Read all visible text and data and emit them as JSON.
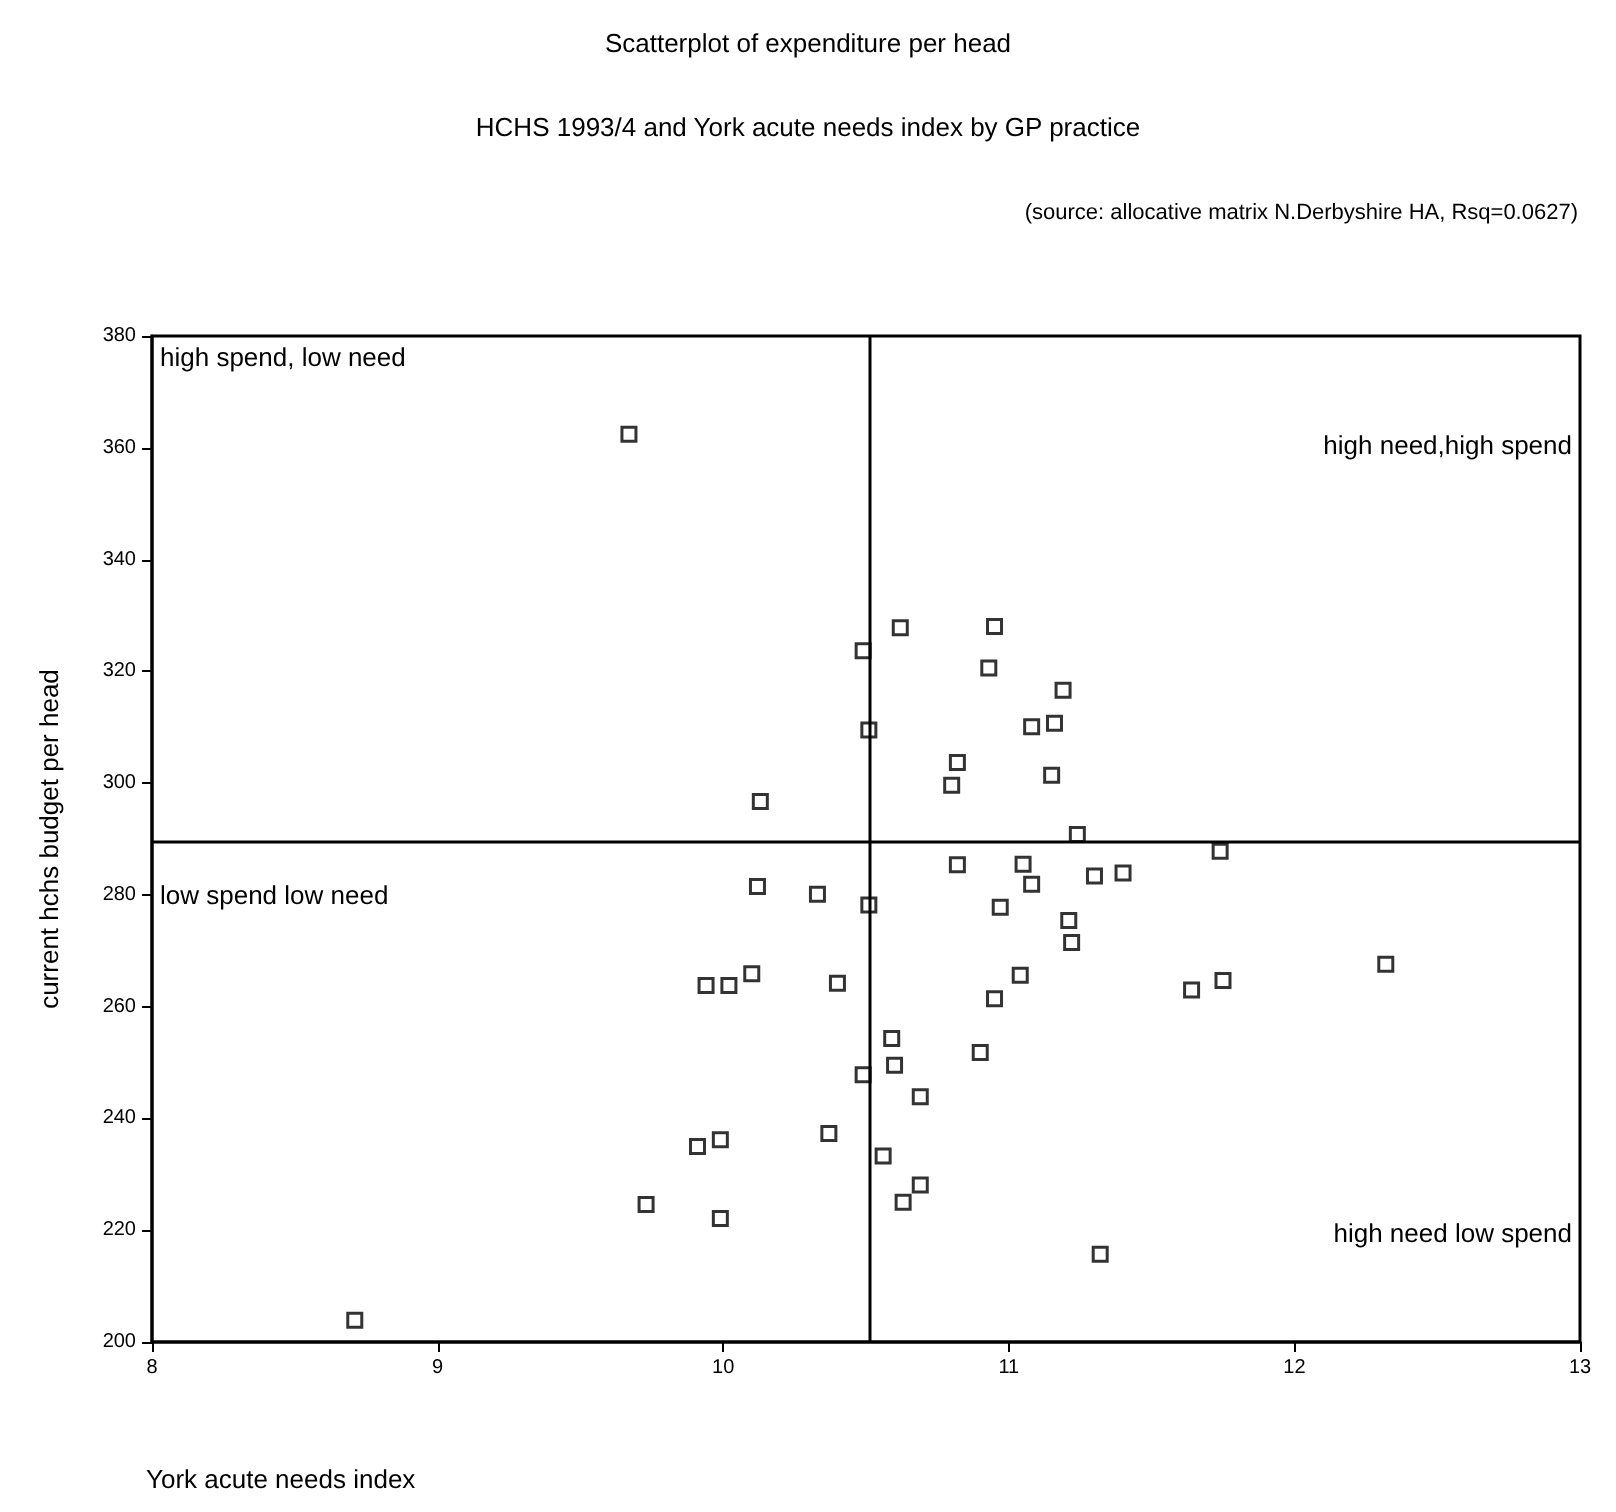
{
  "chart_data": {
    "type": "scatter",
    "title": "Scatterplot of expenditure per head",
    "subtitle": "HCHS 1993/4 and York acute needs index by GP practice",
    "xlabel": "York acute needs index",
    "ylabel": "current hchs budget per head",
    "annotations": [
      "(source: allocative matrix N.Derbyshire HA, Rsq=0.0627)",
      "high spend, low need",
      "high need,high spend",
      "low spend low need",
      "high need low spend"
    ],
    "series": [
      {
        "color": "#000000",
        "x": [
          10.62,
          10.95,
          10.49,
          10.93,
          11.19,
          11.08,
          11.16,
          10.51,
          10.82,
          10.8,
          11.15,
          11.24,
          11.74,
          10.13,
          9.67,
          10.82,
          11.05,
          11.08,
          11.3,
          11.4,
          10.33,
          10.51,
          10.97,
          11.21,
          11.22,
          10.12,
          9.94,
          10.02,
          10.1,
          10.4,
          10.49,
          10.37,
          9.91,
          9.99,
          9.73,
          9.99,
          8.71,
          11.04,
          10.95,
          11.64,
          11.75,
          12.32,
          10.59,
          10.6,
          10.9,
          10.69,
          10.56,
          10.69,
          10.63,
          11.32
        ],
        "values": [
          327.8,
          328.0,
          323.7,
          320.6,
          316.6,
          310.1,
          310.7,
          309.5,
          303.7,
          299.6,
          301.4,
          290.8,
          287.8,
          296.7,
          362.4,
          285.4,
          285.5,
          281.9,
          283.4,
          283.9,
          280.1,
          278.2,
          277.8,
          275.4,
          271.5,
          281.5,
          263.8,
          263.8,
          265.9,
          264.2,
          247.8,
          237.3,
          235.0,
          236.2,
          224.6,
          222.1,
          203.9,
          265.6,
          261.4,
          263.0,
          264.7,
          267.6,
          254.3,
          249.5,
          251.8,
          243.9,
          233.3,
          228.1,
          225.0,
          215.7
        ]
      }
    ],
    "xlim": [
      8,
      13
    ],
    "xticks": [
      8,
      9,
      10,
      11,
      12,
      13
    ],
    "ylim": [
      200,
      380
    ],
    "yticks": [
      200,
      220,
      240,
      260,
      280,
      300,
      320,
      340,
      360,
      380
    ],
    "ref_lines": [
      {
        "axis": "x",
        "value": 10.51,
        "color": "#000000"
      },
      {
        "axis": "y",
        "value": 289.5,
        "color": "#000000"
      }
    ],
    "grid": false,
    "marker": "square"
  }
}
